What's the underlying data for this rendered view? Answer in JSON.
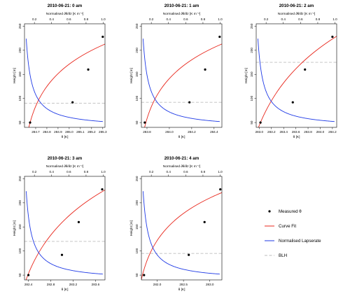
{
  "chart_data": [
    {
      "type": "line",
      "title": "2010-06-21: 0 am",
      "xlabel": "θ [K]",
      "ylabel": "Height [m]",
      "x2label": "Normalised ∂θ/∂z  [K m⁻¹]",
      "xlim": [
        284.6,
        285.32
      ],
      "ylim": [
        40,
        255
      ],
      "x2lim": [
        0.085,
        1.02
      ],
      "xticks": [
        "284.7",
        "284.8",
        "284.9",
        "285.0",
        "285.1",
        "285.2",
        "285.3"
      ],
      "x2ticks": [
        "0.2",
        "0.4",
        "0.6",
        "0.8",
        "1.0"
      ],
      "yticks": [
        "50",
        "100",
        "150",
        "200",
        "250"
      ],
      "measured": [
        {
          "x": 284.65,
          "y": 50
        },
        {
          "x": 285.03,
          "y": 92
        },
        {
          "x": 285.17,
          "y": 160
        },
        {
          "x": 285.3,
          "y": 228
        }
      ],
      "fit_a": 284.63,
      "fit_k": 0.0131,
      "lapse_c": 12,
      "lapse_b": 0.11,
      "blh": 90,
      "grid": false
    },
    {
      "type": "line",
      "title": "2010-06-21: 1 am",
      "xlabel": "θ [K]",
      "ylabel": "Height [m]",
      "x2label": "Normalised ∂θ/∂z  [K m⁻¹]",
      "xlim": [
        283.75,
        284.47
      ],
      "ylim": [
        40,
        255
      ],
      "x2lim": [
        0.085,
        1.02
      ],
      "xticks": [
        "283.8",
        "284.0",
        "284.2",
        "284.4"
      ],
      "x2ticks": [
        "0.2",
        "0.4",
        "0.6",
        "0.8",
        "1.0"
      ],
      "yticks": [
        "50",
        "100",
        "150",
        "200",
        "250"
      ],
      "measured": [
        {
          "x": 283.78,
          "y": 50
        },
        {
          "x": 284.18,
          "y": 92
        },
        {
          "x": 284.32,
          "y": 160
        },
        {
          "x": 284.45,
          "y": 228
        }
      ],
      "fit_a": 283.77,
      "fit_k": 0.0131,
      "lapse_c": 12,
      "lapse_b": 0.11,
      "blh": 92,
      "grid": false
    },
    {
      "type": "line",
      "title": "2010-06-21: 2 am",
      "xlabel": "θ [K]",
      "ylabel": "Height [m]",
      "x2label": "Normalised ∂θ/∂z  [K m⁻¹]",
      "xlim": [
        282.95,
        284.27
      ],
      "ylim": [
        40,
        255
      ],
      "x2lim": [
        0.085,
        1.02
      ],
      "xticks": [
        "283.0",
        "283.2",
        "283.4",
        "283.6",
        "283.8",
        "284.0",
        "284.2"
      ],
      "x2ticks": [
        "0.2",
        "0.4",
        "0.6",
        "0.8",
        "1.0"
      ],
      "yticks": [
        "50",
        "100",
        "150",
        "200",
        "250"
      ],
      "measured": [
        {
          "x": 283.02,
          "y": 50
        },
        {
          "x": 283.55,
          "y": 92
        },
        {
          "x": 283.75,
          "y": 160
        },
        {
          "x": 284.2,
          "y": 228
        }
      ],
      "fit_a": 283.0,
      "fit_k": 0.0074,
      "lapse_c": 12,
      "lapse_b": 0.11,
      "blh": 175,
      "grid": false
    },
    {
      "type": "line",
      "title": "2010-06-21: 3 am",
      "xlabel": "θ [K]",
      "ylabel": "Height [m]",
      "x2label": "Normalised ∂θ/∂z  [K m⁻¹]",
      "xlim": [
        282.33,
        283.77
      ],
      "ylim": [
        40,
        255
      ],
      "x2lim": [
        0.085,
        1.02
      ],
      "xticks": [
        "282.4",
        "282.8",
        "283.2",
        "283.6"
      ],
      "x2ticks": [
        "0.2",
        "0.4",
        "0.6",
        "0.8",
        "1.0"
      ],
      "yticks": [
        "50",
        "100",
        "150",
        "200",
        "250"
      ],
      "measured": [
        {
          "x": 282.4,
          "y": 50
        },
        {
          "x": 283.0,
          "y": 92
        },
        {
          "x": 283.3,
          "y": 160
        },
        {
          "x": 283.72,
          "y": 228
        }
      ],
      "fit_a": 282.37,
      "fit_k": 0.0083,
      "lapse_c": 12,
      "lapse_b": 0.11,
      "blh": 120,
      "grid": false
    },
    {
      "type": "line",
      "title": "2010-06-21: 4 am",
      "xlabel": "θ [K]",
      "ylabel": "Height [m]",
      "x2label": "Normalised ∂θ/∂z  [K m⁻¹]",
      "xlim": [
        281.7,
        283.23
      ],
      "ylim": [
        40,
        255
      ],
      "x2lim": [
        0.085,
        1.02
      ],
      "xticks": [
        "282.0",
        "282.5",
        "283.0"
      ],
      "x2ticks": [
        "0.2",
        "0.4",
        "0.6",
        "0.8",
        "1.0"
      ],
      "yticks": [
        "50",
        "100",
        "150",
        "200",
        "250"
      ],
      "measured": [
        {
          "x": 281.75,
          "y": 50
        },
        {
          "x": 282.6,
          "y": 92
        },
        {
          "x": 282.9,
          "y": 160
        },
        {
          "x": 283.2,
          "y": 228
        }
      ],
      "fit_a": 281.7,
      "fit_k": 0.0131,
      "lapse_c": 12,
      "lapse_b": 0.11,
      "blh": 95,
      "grid": false
    }
  ],
  "legend": {
    "placement": "bottom-right",
    "measured": "Measured θ",
    "fit": "Curve Fit",
    "lapse": "Normalised Lapserate",
    "blh": "BLH",
    "colors": {
      "fit": "#e8271c",
      "lapse": "#1f3ae6",
      "blh": "#bdbdbd",
      "point": "#000000"
    }
  }
}
